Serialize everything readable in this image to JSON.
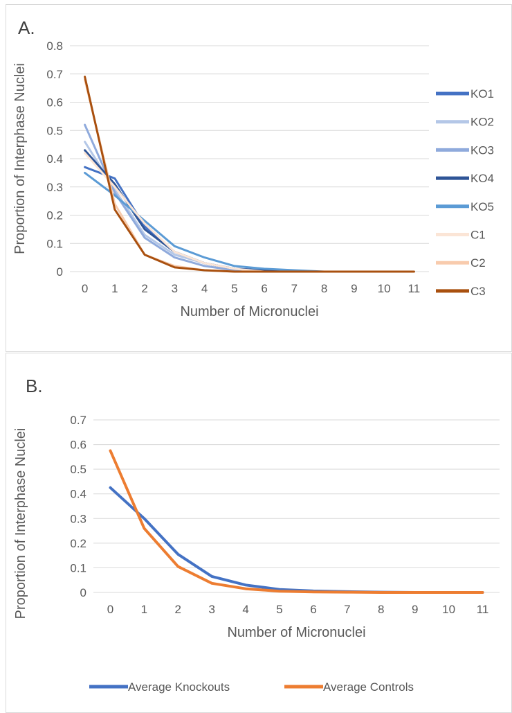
{
  "chart_data": [
    {
      "type": "line",
      "panel_label": "A.",
      "xlabel": "Number of Micronuclei",
      "ylabel": "Proportion of Interphase Nuclei",
      "ylim": [
        0,
        0.8
      ],
      "yticks": [
        "0",
        "0.1",
        "0.2",
        "0.3",
        "0.4",
        "0.5",
        "0.6",
        "0.7",
        "0.8"
      ],
      "categories": [
        "0",
        "1",
        "2",
        "3",
        "4",
        "5",
        "6",
        "7",
        "8",
        "9",
        "10",
        "11"
      ],
      "grid": true,
      "legend_position": "right",
      "series": [
        {
          "name": "KO1",
          "color": "#4472c4",
          "values": [
            0.37,
            0.33,
            0.16,
            0.07,
            0.03,
            0.01,
            0.005,
            0,
            0,
            0,
            0,
            0
          ]
        },
        {
          "name": "KO2",
          "color": "#b4c7e7",
          "values": [
            0.46,
            0.29,
            0.13,
            0.06,
            0.03,
            0.01,
            0.005,
            0,
            0,
            0,
            0,
            0
          ]
        },
        {
          "name": "KO3",
          "color": "#8faadc",
          "values": [
            0.52,
            0.28,
            0.12,
            0.05,
            0.02,
            0.005,
            0,
            0,
            0,
            0,
            0,
            0
          ]
        },
        {
          "name": "KO4",
          "color": "#2f5597",
          "values": [
            0.43,
            0.31,
            0.15,
            0.07,
            0.03,
            0.01,
            0.005,
            0,
            0,
            0,
            0,
            0
          ]
        },
        {
          "name": "KO5",
          "color": "#5b9bd5",
          "values": [
            0.35,
            0.27,
            0.18,
            0.09,
            0.05,
            0.02,
            0.01,
            0.005,
            0,
            0,
            0,
            0
          ]
        },
        {
          "name": "C1",
          "color": "#fbe5d6",
          "values": [
            0.42,
            0.3,
            0.17,
            0.07,
            0.03,
            0.01,
            0,
            0,
            0,
            0,
            0,
            0
          ]
        },
        {
          "name": "C2",
          "color": "#f8cbad",
          "values": [
            0.68,
            0.24,
            0.06,
            0.02,
            0.005,
            0,
            0,
            0,
            0,
            0,
            0,
            0
          ]
        },
        {
          "name": "C3",
          "color": "#a9500f",
          "values": [
            0.69,
            0.22,
            0.06,
            0.015,
            0.005,
            0,
            0,
            0,
            0,
            0,
            0,
            0
          ]
        }
      ]
    },
    {
      "type": "line",
      "panel_label": "B.",
      "xlabel": "Number of Micronuclei",
      "ylabel": "Proportion of Interphase Nuclei",
      "ylim": [
        0,
        0.7
      ],
      "yticks": [
        "0",
        "0.1",
        "0.2",
        "0.3",
        "0.4",
        "0.5",
        "0.6",
        "0.7"
      ],
      "categories": [
        "0",
        "1",
        "2",
        "3",
        "4",
        "5",
        "6",
        "7",
        "8",
        "9",
        "10",
        "11"
      ],
      "grid": true,
      "legend_position": "bottom",
      "series": [
        {
          "name": "Average Knockouts",
          "color": "#4472c4",
          "values": [
            0.425,
            0.3,
            0.155,
            0.065,
            0.03,
            0.012,
            0.006,
            0.003,
            0.001,
            0,
            0,
            0
          ]
        },
        {
          "name": "Average Controls",
          "color": "#ed7d31",
          "values": [
            0.575,
            0.26,
            0.105,
            0.037,
            0.015,
            0.005,
            0.002,
            0.001,
            0,
            0,
            0,
            0
          ]
        }
      ]
    }
  ]
}
